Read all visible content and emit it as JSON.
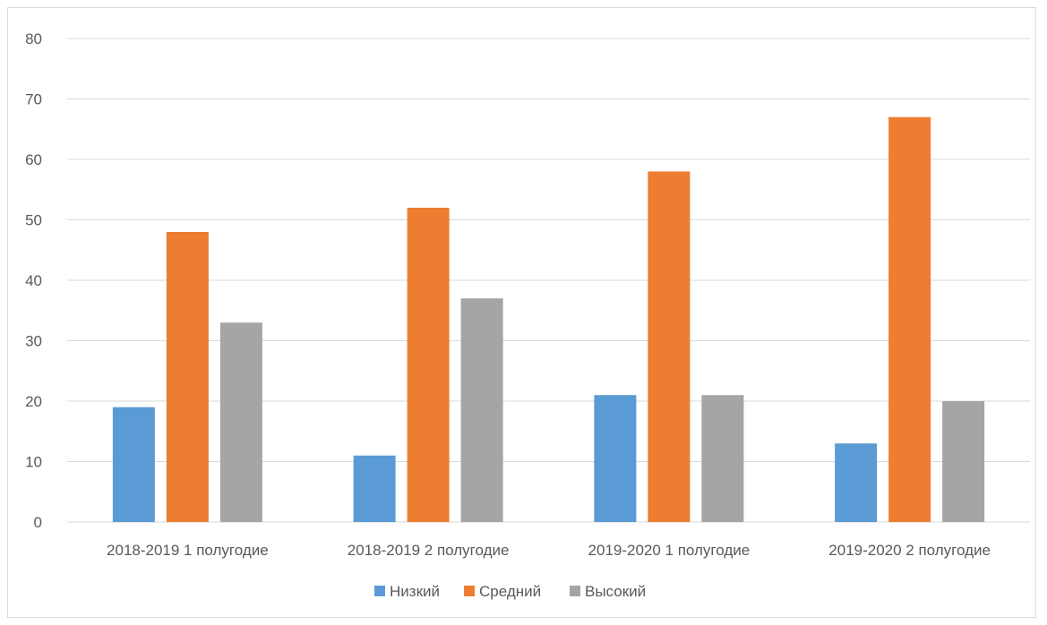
{
  "chart_data": {
    "type": "bar",
    "title": "",
    "xlabel": "",
    "ylabel": "",
    "categories": [
      "2018-2019 1 полугодие",
      "2018-2019 2 полугодие",
      "2019-2020 1 полугодие",
      "2019-2020 2 полугодие"
    ],
    "series": [
      {
        "name": "Низкий",
        "color": "#5b9bd5",
        "values": [
          19,
          11,
          21,
          13
        ]
      },
      {
        "name": "Средний",
        "color": "#ed7d31",
        "values": [
          48,
          52,
          58,
          67
        ]
      },
      {
        "name": "Высокий",
        "color": "#a5a5a5",
        "values": [
          33,
          37,
          21,
          20
        ]
      }
    ],
    "ylim": [
      0,
      80
    ],
    "yticks": [
      0,
      10,
      20,
      30,
      40,
      50,
      60,
      70,
      80
    ],
    "grid": true,
    "legend_position": "bottom"
  }
}
